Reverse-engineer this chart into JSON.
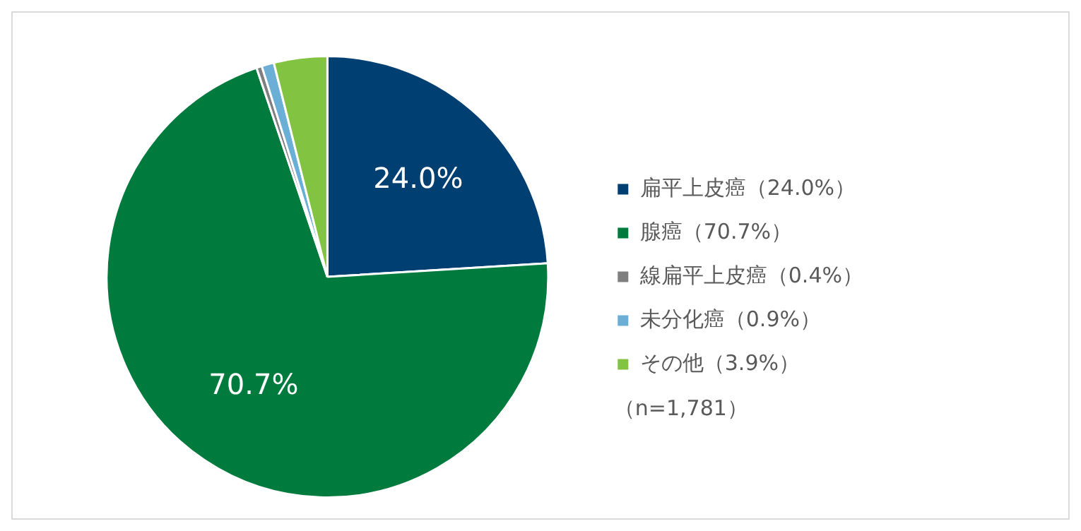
{
  "chart_data": {
    "type": "pie",
    "categories": [
      "扁平上皮癌（24.0%）",
      "腺癌（70.7%）",
      "線扁平上皮癌（0.4%）",
      "未分化癌（0.9%）",
      "その他（3.9%）"
    ],
    "values": [
      24.0,
      70.7,
      0.4,
      0.9,
      3.9
    ],
    "colors": [
      "#003f72",
      "#007a3d",
      "#7f7f7f",
      "#6baed6",
      "#82c341"
    ],
    "value_labels": [
      "24.0%",
      "70.7%",
      null,
      null,
      null
    ],
    "legend": "right",
    "annotations": [
      "（n=1,781）"
    ]
  }
}
